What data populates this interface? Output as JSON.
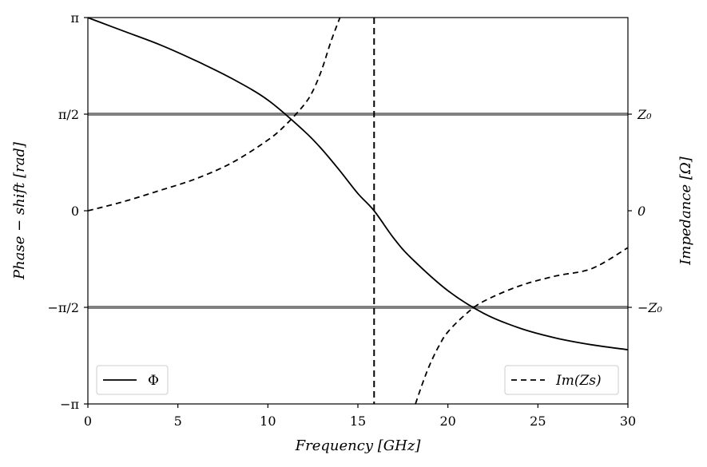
{
  "chart_data": {
    "type": "line",
    "xlabel": "Frequency [GHz]",
    "ylabel_left": "Phase − shift [rad]",
    "ylabel_right": "Impedance [Ω]",
    "xlim": [
      0,
      30
    ],
    "ylim_left": [
      -3.14159,
      3.14159
    ],
    "x_ticks": [
      0,
      5,
      10,
      15,
      20,
      25,
      30
    ],
    "x_tick_labels": [
      "0",
      "5",
      "10",
      "15",
      "20",
      "25",
      "30"
    ],
    "y_ticks_left": [
      -3.14159,
      -1.5708,
      0,
      1.5708,
      3.14159
    ],
    "y_tick_labels_left": [
      "−π",
      "−π/2",
      "0",
      "π/2",
      "π"
    ],
    "y_tick_labels_right": [
      "−Z₀",
      "0",
      "Z₀"
    ],
    "resonance_frequency_GHz": 15.9,
    "grid": false,
    "reference_lines": [
      {
        "axis": "y",
        "value": 1.5708,
        "color": "#808080"
      },
      {
        "axis": "y",
        "value": -1.5708,
        "color": "#808080"
      }
    ],
    "series": [
      {
        "name": "Φ",
        "style": "solid",
        "color": "#000000",
        "x": [
          0,
          2,
          4,
          6,
          8,
          10,
          12,
          13,
          14,
          15,
          15.9,
          17,
          18,
          20,
          22,
          24,
          26,
          28,
          30
        ],
        "y": [
          3.14,
          2.92,
          2.7,
          2.44,
          2.15,
          1.8,
          1.3,
          1.0,
          0.65,
          0.28,
          0.0,
          -0.45,
          -0.78,
          -1.3,
          -1.67,
          -1.91,
          -2.07,
          -2.18,
          -2.26
        ]
      },
      {
        "name": "Im(Z_s)",
        "style": "dashed",
        "color": "#000000",
        "segments": [
          {
            "x": [
              0,
              2,
              4,
              6,
              8,
              10,
              11,
              12,
              12.5,
              13,
              13.5,
              14
            ],
            "y": [
              0.0,
              0.15,
              0.33,
              0.52,
              0.78,
              1.15,
              1.4,
              1.72,
              1.95,
              2.3,
              2.75,
              3.14
            ]
          },
          {
            "x": [
              18.2,
              18.6,
              19,
              19.5,
              20,
              21,
              22,
              24,
              26,
              28,
              30
            ],
            "y": [
              -3.14,
              -2.8,
              -2.5,
              -2.2,
              -1.97,
              -1.68,
              -1.47,
              -1.22,
              -1.06,
              -0.94,
              -0.6
            ]
          }
        ]
      }
    ],
    "legends": [
      {
        "location": "lower-left",
        "entries": [
          "Φ"
        ]
      },
      {
        "location": "lower-right",
        "entries": [
          "Im(Zs)"
        ]
      }
    ]
  }
}
